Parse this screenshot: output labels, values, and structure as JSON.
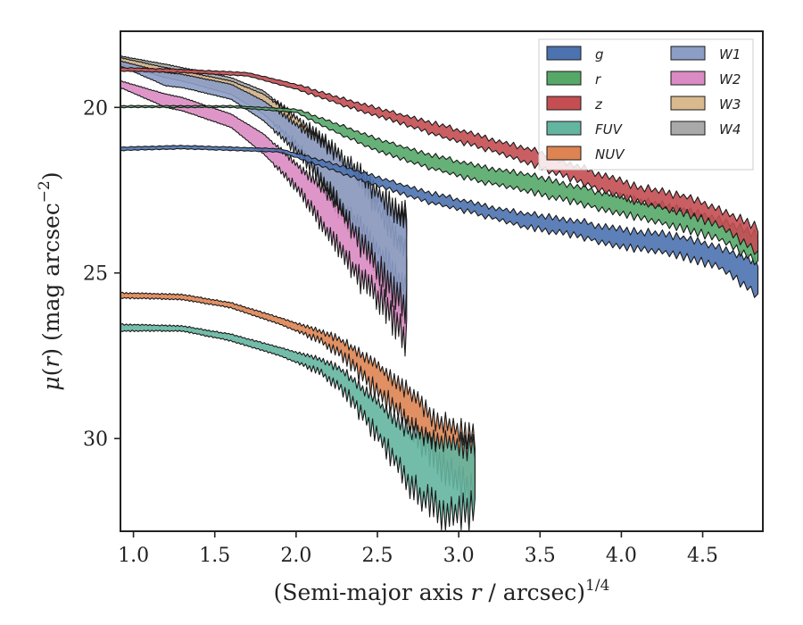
{
  "chart_data": {
    "type": "area",
    "xlabel": "(Semi-major axis r / arcsec)",
    "xlabel_main": "(Semi-major axis ",
    "xlabel_var": "r",
    "xlabel_tail": " / arcsec)",
    "xlabel_sup": "1/4",
    "ylabel_mu": "μ",
    "ylabel_open": "(",
    "ylabel_var": "r",
    "ylabel_close": ") (mag arcsec",
    "ylabel_sup": "−2",
    "ylabel_end": ")",
    "xlim": [
      0.92,
      4.87
    ],
    "ylim": [
      32.8,
      17.7
    ],
    "y_inverted": true,
    "xticks": [
      1.0,
      1.5,
      2.0,
      2.5,
      3.0,
      3.5,
      4.0,
      4.5
    ],
    "xtick_labels": [
      "1.0",
      "1.5",
      "2.0",
      "2.5",
      "3.0",
      "3.5",
      "4.0",
      "4.5"
    ],
    "yticks": [
      20,
      25,
      30
    ],
    "ytick_labels": [
      "20",
      "25",
      "30"
    ],
    "legend_position": "top-right",
    "legend_columns": 2,
    "grid": false,
    "series": [
      {
        "name": "g",
        "color": "#4c72b0",
        "upper": [
          [
            0.92,
            21.2
          ],
          [
            1.3,
            21.15
          ],
          [
            1.6,
            21.2
          ],
          [
            1.9,
            21.25
          ],
          [
            2.2,
            21.65
          ],
          [
            2.5,
            22.1
          ],
          [
            2.8,
            22.55
          ],
          [
            3.1,
            22.9
          ],
          [
            3.4,
            23.2
          ],
          [
            3.7,
            23.4
          ],
          [
            4.0,
            23.7
          ],
          [
            4.3,
            23.85
          ],
          [
            4.6,
            24.2
          ],
          [
            4.84,
            24.7
          ]
        ],
        "lower": [
          [
            0.92,
            21.3
          ],
          [
            1.3,
            21.25
          ],
          [
            1.6,
            21.3
          ],
          [
            1.9,
            21.35
          ],
          [
            2.2,
            21.85
          ],
          [
            2.5,
            22.35
          ],
          [
            2.8,
            22.85
          ],
          [
            3.1,
            23.2
          ],
          [
            3.4,
            23.6
          ],
          [
            3.7,
            23.85
          ],
          [
            4.0,
            24.2
          ],
          [
            4.3,
            24.4
          ],
          [
            4.6,
            24.8
          ],
          [
            4.84,
            25.7
          ]
        ]
      },
      {
        "name": "r",
        "color": "#55a868",
        "upper": [
          [
            0.92,
            19.95
          ],
          [
            1.3,
            19.95
          ],
          [
            1.6,
            19.95
          ],
          [
            2.0,
            20.05
          ],
          [
            2.2,
            20.4
          ],
          [
            2.5,
            20.95
          ],
          [
            2.8,
            21.4
          ],
          [
            3.1,
            21.75
          ],
          [
            3.4,
            22.0
          ],
          [
            3.7,
            22.35
          ],
          [
            4.0,
            22.7
          ],
          [
            4.3,
            23.0
          ],
          [
            4.6,
            23.35
          ],
          [
            4.84,
            23.9
          ]
        ],
        "lower": [
          [
            0.92,
            20.0
          ],
          [
            1.3,
            20.0
          ],
          [
            1.6,
            20.0
          ],
          [
            2.0,
            20.15
          ],
          [
            2.2,
            20.65
          ],
          [
            2.5,
            21.3
          ],
          [
            2.8,
            21.8
          ],
          [
            3.1,
            22.2
          ],
          [
            3.4,
            22.5
          ],
          [
            3.7,
            22.85
          ],
          [
            4.0,
            23.2
          ],
          [
            4.3,
            23.55
          ],
          [
            4.6,
            23.95
          ],
          [
            4.84,
            24.7
          ]
        ]
      },
      {
        "name": "z",
        "color": "#c44e52",
        "upper": [
          [
            0.92,
            18.8
          ],
          [
            1.3,
            18.85
          ],
          [
            1.7,
            18.95
          ],
          [
            2.0,
            19.3
          ],
          [
            2.3,
            19.75
          ],
          [
            2.6,
            20.15
          ],
          [
            2.9,
            20.55
          ],
          [
            3.2,
            20.95
          ],
          [
            3.5,
            21.35
          ],
          [
            3.8,
            21.9
          ],
          [
            4.1,
            22.4
          ],
          [
            4.4,
            22.7
          ],
          [
            4.6,
            23.05
          ],
          [
            4.84,
            23.65
          ]
        ],
        "lower": [
          [
            0.92,
            18.9
          ],
          [
            1.3,
            18.95
          ],
          [
            1.7,
            19.05
          ],
          [
            2.0,
            19.45
          ],
          [
            2.3,
            19.95
          ],
          [
            2.6,
            20.4
          ],
          [
            2.9,
            20.9
          ],
          [
            3.2,
            21.3
          ],
          [
            3.5,
            21.8
          ],
          [
            3.8,
            22.35
          ],
          [
            4.1,
            22.85
          ],
          [
            4.4,
            23.2
          ],
          [
            4.6,
            23.55
          ],
          [
            4.84,
            24.4
          ]
        ]
      },
      {
        "name": "FUV",
        "color": "#64b5a0",
        "upper": [
          [
            0.92,
            26.55
          ],
          [
            1.3,
            26.6
          ],
          [
            1.6,
            26.85
          ],
          [
            1.9,
            27.25
          ],
          [
            2.15,
            27.6
          ],
          [
            2.3,
            28.0
          ],
          [
            2.5,
            28.9
          ],
          [
            2.7,
            29.8
          ],
          [
            2.9,
            30.1
          ],
          [
            3.1,
            30.3
          ]
        ],
        "lower": [
          [
            0.92,
            26.75
          ],
          [
            1.3,
            26.75
          ],
          [
            1.6,
            27.05
          ],
          [
            1.9,
            27.5
          ],
          [
            2.15,
            28.0
          ],
          [
            2.3,
            28.6
          ],
          [
            2.5,
            29.9
          ],
          [
            2.7,
            31.4
          ],
          [
            2.9,
            32.3
          ],
          [
            3.1,
            32.2
          ]
        ]
      },
      {
        "name": "NUV",
        "color": "#dd8452",
        "upper": [
          [
            0.92,
            25.6
          ],
          [
            1.3,
            25.65
          ],
          [
            1.6,
            25.9
          ],
          [
            1.9,
            26.35
          ],
          [
            2.15,
            26.75
          ],
          [
            2.3,
            27.1
          ],
          [
            2.5,
            27.8
          ],
          [
            2.7,
            28.6
          ],
          [
            2.85,
            29.4
          ],
          [
            3.1,
            30.0
          ]
        ],
        "lower": [
          [
            0.92,
            25.75
          ],
          [
            1.3,
            25.8
          ],
          [
            1.6,
            26.05
          ],
          [
            1.9,
            26.55
          ],
          [
            2.15,
            27.05
          ],
          [
            2.3,
            27.55
          ],
          [
            2.5,
            28.6
          ],
          [
            2.7,
            29.6
          ],
          [
            2.85,
            30.6
          ],
          [
            3.1,
            31.8
          ]
        ]
      },
      {
        "name": "W1",
        "color": "#8c9dc6",
        "upper": [
          [
            0.92,
            18.6
          ],
          [
            1.2,
            18.95
          ],
          [
            1.3,
            19.0
          ],
          [
            1.6,
            19.3
          ],
          [
            1.8,
            19.8
          ],
          [
            2.0,
            20.5
          ],
          [
            2.2,
            21.2
          ],
          [
            2.4,
            22.0
          ],
          [
            2.55,
            22.8
          ],
          [
            2.68,
            23.5
          ]
        ],
        "lower": [
          [
            0.92,
            18.75
          ],
          [
            1.2,
            19.35
          ],
          [
            1.3,
            19.4
          ],
          [
            1.6,
            19.75
          ],
          [
            1.8,
            20.4
          ],
          [
            2.0,
            21.3
          ],
          [
            2.2,
            22.4
          ],
          [
            2.4,
            24.1
          ],
          [
            2.55,
            25.2
          ],
          [
            2.68,
            26.0
          ]
        ]
      },
      {
        "name": "W2",
        "color": "#da8bc3",
        "upper": [
          [
            0.92,
            19.2
          ],
          [
            1.2,
            19.6
          ],
          [
            1.3,
            19.7
          ],
          [
            1.6,
            20.2
          ],
          [
            1.8,
            20.8
          ],
          [
            2.0,
            21.7
          ],
          [
            2.2,
            22.6
          ],
          [
            2.4,
            23.6
          ],
          [
            2.55,
            24.6
          ],
          [
            2.68,
            25.5
          ]
        ],
        "lower": [
          [
            0.92,
            19.4
          ],
          [
            1.2,
            20.0
          ],
          [
            1.3,
            20.1
          ],
          [
            1.6,
            20.6
          ],
          [
            1.8,
            21.4
          ],
          [
            2.0,
            22.4
          ],
          [
            2.2,
            23.8
          ],
          [
            2.4,
            25.2
          ],
          [
            2.55,
            26.0
          ],
          [
            2.68,
            27.0
          ]
        ]
      },
      {
        "name": "W3",
        "color": "#d9b98e",
        "upper": [
          [
            0.92,
            18.5
          ],
          [
            1.2,
            18.8
          ],
          [
            1.3,
            18.9
          ],
          [
            1.6,
            19.2
          ],
          [
            1.8,
            19.6
          ],
          [
            2.0,
            20.3
          ],
          [
            2.2,
            21.1
          ],
          [
            2.4,
            22.2
          ],
          [
            2.55,
            23.4
          ],
          [
            2.68,
            24.4
          ]
        ],
        "lower": [
          [
            0.92,
            18.7
          ],
          [
            1.2,
            19.1
          ],
          [
            1.3,
            19.2
          ],
          [
            1.6,
            19.6
          ],
          [
            1.8,
            20.2
          ],
          [
            2.0,
            21.1
          ],
          [
            2.2,
            22.6
          ],
          [
            2.4,
            24.1
          ],
          [
            2.55,
            25.4
          ],
          [
            2.68,
            26.2
          ]
        ]
      },
      {
        "name": "W4",
        "color": "#a9a9a9",
        "upper": [
          [
            0.92,
            18.45
          ],
          [
            1.2,
            18.7
          ],
          [
            1.3,
            18.8
          ],
          [
            1.6,
            19.1
          ],
          [
            1.8,
            19.5
          ],
          [
            2.0,
            20.3
          ],
          [
            2.2,
            21.3
          ],
          [
            2.4,
            22.3
          ],
          [
            2.55,
            22.9
          ],
          [
            2.68,
            23.2
          ]
        ],
        "lower": [
          [
            0.92,
            18.6
          ],
          [
            1.2,
            19.0
          ],
          [
            1.3,
            19.1
          ],
          [
            1.6,
            19.5
          ],
          [
            1.8,
            19.9
          ],
          [
            2.0,
            20.8
          ],
          [
            2.2,
            22.1
          ],
          [
            2.4,
            23.5
          ],
          [
            2.55,
            24.4
          ],
          [
            2.68,
            24.3
          ]
        ]
      }
    ]
  }
}
